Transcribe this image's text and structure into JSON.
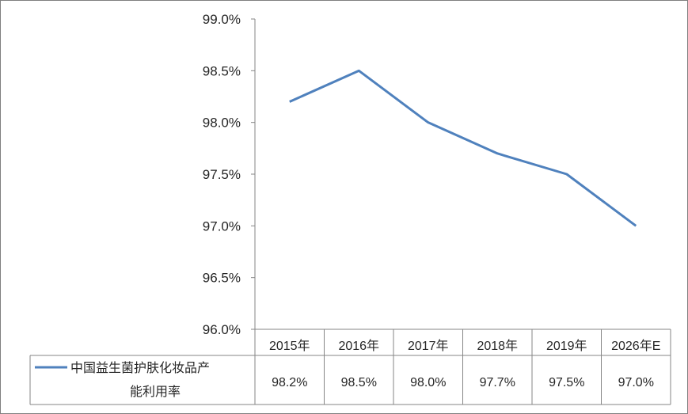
{
  "chart_data": {
    "type": "line",
    "categories": [
      "2015年",
      "2016年",
      "2017年",
      "2018年",
      "2019年",
      "2026年E"
    ],
    "series": [
      {
        "name": "中国益生菌护肤化妆品产能利用率",
        "name_lines": [
          "中国益生菌护肤化妆品产",
          "能利用率"
        ],
        "values": [
          98.2,
          98.5,
          98.0,
          97.7,
          97.5,
          97.0
        ],
        "value_labels": [
          "98.2%",
          "98.5%",
          "98.0%",
          "97.7%",
          "97.5%",
          "97.0%"
        ],
        "color": "#4f81bd"
      }
    ],
    "yticks": [
      "99.0%",
      "98.5%",
      "98.0%",
      "97.5%",
      "97.0%",
      "96.5%",
      "96.0%"
    ],
    "ylim": [
      96.0,
      99.0
    ],
    "grid": false,
    "legend": "data-table"
  }
}
